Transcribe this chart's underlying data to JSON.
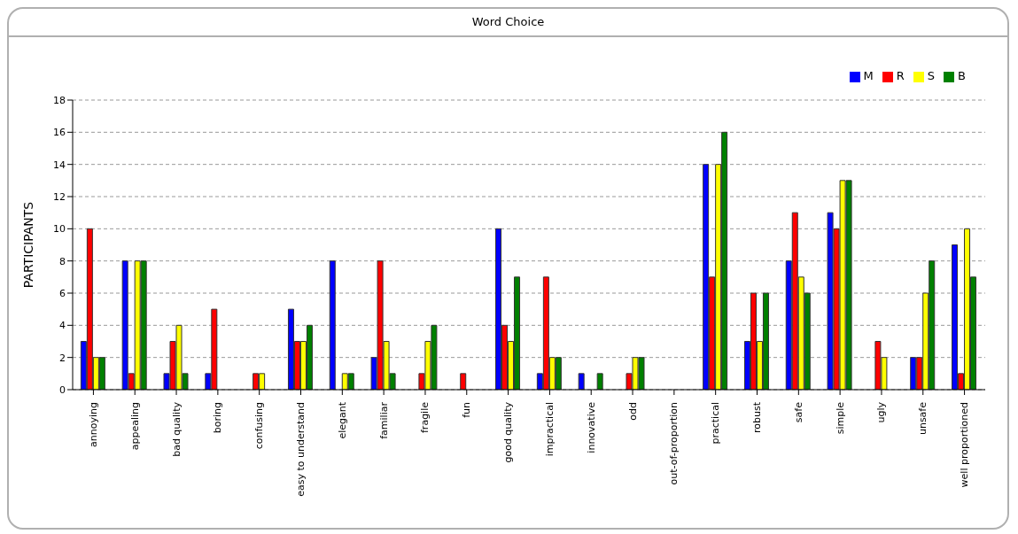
{
  "chart_data": {
    "type": "bar",
    "title": "Word Choice",
    "ylabel": "PARTICIPANTS",
    "categories": [
      "annoying",
      "appealing",
      "bad quality",
      "boring",
      "confusing",
      "easy to understand",
      "elegant",
      "familiar",
      "fragile",
      "fun",
      "good quality",
      "impractical",
      "innovative",
      "odd",
      "out-of-proportion",
      "practical",
      "robust",
      "safe",
      "simple",
      "ugly",
      "unsafe",
      "well proportioned"
    ],
    "series": [
      {
        "name": "M",
        "color": "#0000ff",
        "values": [
          3,
          8,
          1,
          1,
          0,
          5,
          8,
          2,
          0,
          0,
          10,
          1,
          1,
          0,
          0,
          14,
          3,
          8,
          11,
          0,
          2,
          9
        ]
      },
      {
        "name": "R",
        "color": "#ff0000",
        "values": [
          10,
          1,
          3,
          5,
          1,
          3,
          0,
          8,
          1,
          1,
          4,
          7,
          0,
          1,
          0,
          7,
          6,
          11,
          10,
          3,
          2,
          1
        ]
      },
      {
        "name": "S",
        "color": "#ffff00",
        "values": [
          2,
          8,
          4,
          0,
          1,
          3,
          1,
          3,
          3,
          0,
          3,
          2,
          0,
          2,
          0,
          14,
          3,
          7,
          13,
          2,
          6,
          10
        ]
      },
      {
        "name": "B",
        "color": "#008000",
        "values": [
          2,
          8,
          1,
          0,
          0,
          4,
          1,
          1,
          4,
          0,
          7,
          2,
          1,
          2,
          0,
          16,
          6,
          6,
          13,
          0,
          8,
          7
        ]
      }
    ],
    "ylim": [
      0,
      18
    ],
    "yticks": [
      0,
      2,
      4,
      6,
      8,
      10,
      12,
      14,
      16,
      18
    ],
    "grid": "y",
    "legend": "top right"
  }
}
